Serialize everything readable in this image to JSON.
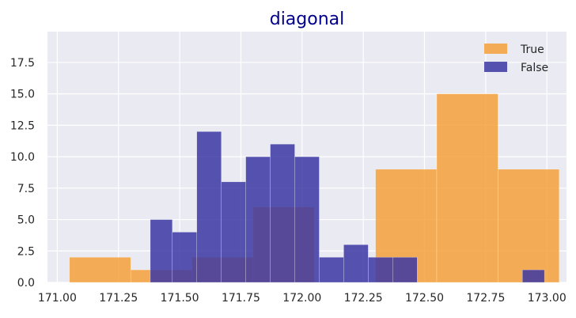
{
  "chart_data": {
    "type": "bar",
    "title": "diagonal",
    "xlabel": "",
    "ylabel": "",
    "xlim": [
      170.96,
      173.08
    ],
    "ylim": [
      0,
      19.95
    ],
    "grid": true,
    "legend_placement": "top-right",
    "colors": {
      "plot_background": "#eaeaf2",
      "grid": "#ffffff",
      "title": "#00008b"
    },
    "x_ticks": [
      {
        "value": 171.0,
        "label": "171.00"
      },
      {
        "value": 171.25,
        "label": "171.25"
      },
      {
        "value": 171.5,
        "label": "171.50"
      },
      {
        "value": 171.75,
        "label": "171.75"
      },
      {
        "value": 172.0,
        "label": "172.00"
      },
      {
        "value": 172.25,
        "label": "172.25"
      },
      {
        "value": 172.5,
        "label": "172.50"
      },
      {
        "value": 172.75,
        "label": "172.75"
      },
      {
        "value": 173.0,
        "label": "173.00"
      }
    ],
    "y_ticks": [
      {
        "value": 0,
        "label": "0.0"
      },
      {
        "value": 2.5,
        "label": "2.5"
      },
      {
        "value": 5,
        "label": "5.0"
      },
      {
        "value": 7.5,
        "label": "7.5"
      },
      {
        "value": 10,
        "label": "10.0"
      },
      {
        "value": 12.5,
        "label": "12.5"
      },
      {
        "value": 15,
        "label": "15.0"
      },
      {
        "value": 17.5,
        "label": "17.5"
      }
    ],
    "series": [
      {
        "name": "True",
        "color": "#f5a03a",
        "bins": [
          {
            "x0": 171.05,
            "x1": 171.3,
            "count": 2
          },
          {
            "x0": 171.3,
            "x1": 171.55,
            "count": 1
          },
          {
            "x0": 171.55,
            "x1": 171.8,
            "count": 2
          },
          {
            "x0": 171.8,
            "x1": 172.05,
            "count": 6
          },
          {
            "x0": 172.05,
            "x1": 172.3,
            "count": 0
          },
          {
            "x0": 172.3,
            "x1": 172.55,
            "count": 9
          },
          {
            "x0": 172.55,
            "x1": 172.8,
            "count": 15
          },
          {
            "x0": 172.8,
            "x1": 173.05,
            "count": 9
          }
        ]
      },
      {
        "name": "False",
        "color": "#3b37a3",
        "bins": [
          {
            "x0": 171.38,
            "x1": 171.47,
            "count": 5
          },
          {
            "x0": 171.47,
            "x1": 171.57,
            "count": 4
          },
          {
            "x0": 171.57,
            "x1": 171.67,
            "count": 12
          },
          {
            "x0": 171.67,
            "x1": 171.77,
            "count": 8
          },
          {
            "x0": 171.77,
            "x1": 171.87,
            "count": 10
          },
          {
            "x0": 171.87,
            "x1": 171.97,
            "count": 11
          },
          {
            "x0": 171.97,
            "x1": 172.07,
            "count": 10
          },
          {
            "x0": 172.07,
            "x1": 172.17,
            "count": 2
          },
          {
            "x0": 172.17,
            "x1": 172.27,
            "count": 3
          },
          {
            "x0": 172.27,
            "x1": 172.37,
            "count": 2
          },
          {
            "x0": 172.37,
            "x1": 172.47,
            "count": 2
          },
          {
            "x0": 172.9,
            "x1": 172.99,
            "count": 1
          }
        ]
      }
    ]
  }
}
